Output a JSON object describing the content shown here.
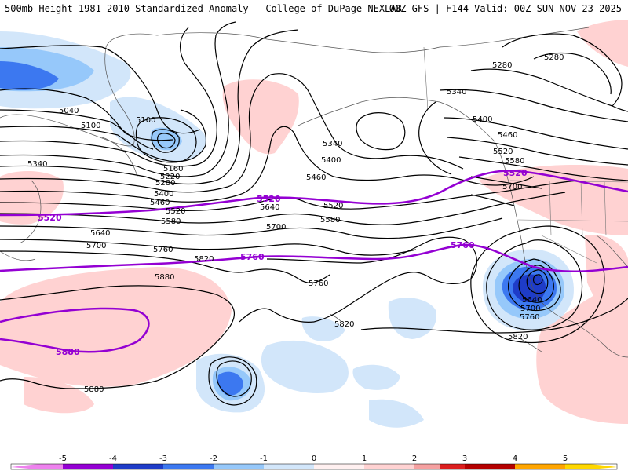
{
  "header": {
    "title": "500mb Height 1981-2010 Standardized Anomaly | College of DuPage NEXLAB",
    "run_info": "00Z GFS | F144 Valid: 00Z SUN NOV 23 2025"
  },
  "contour_labels": {
    "c5040": "5040",
    "c5100a": "5100",
    "c5100b": "5100",
    "c5160": "5160",
    "c5220": "5220",
    "c5280a": "5280",
    "c5280b": "5280",
    "c5280c": "5280",
    "c5340a": "5340",
    "c5340b": "5340",
    "c5340c": "5340",
    "c5400a": "5400",
    "c5400b": "5400",
    "c5400c": "5400",
    "c5460a": "5460",
    "c5460b": "5460",
    "c5460c": "5460",
    "c5520a": "5520",
    "c5520b": "5520",
    "c5520c": "5520",
    "c5580a": "5580",
    "c5580b": "5580",
    "c5580c": "5580",
    "c5640a": "5640",
    "c5640b": "5640",
    "c5640c": "5640",
    "c5700a": "5700",
    "c5700b": "5700",
    "c5700c": "5700",
    "c5700d": "5700",
    "c5760a": "5760",
    "c5760b": "5760",
    "c5760c": "5760",
    "c5820a": "5820",
    "c5820b": "5820",
    "c5820c": "5820",
    "c5880a": "5880",
    "c5880b": "5880"
  },
  "highlight_labels": {
    "h5520a": "5520",
    "h5520b": "5520",
    "h5520c": "5520",
    "h5760a": "5760",
    "h5760b": "5760",
    "h5880": "5880"
  },
  "colorbar": {
    "ticks": [
      "-5",
      "-4",
      "-3",
      "-2",
      "-1",
      "0",
      "1",
      "2",
      "3",
      "4",
      "5"
    ],
    "colors": {
      "neg5": "#ee82ee",
      "neg4": "#9400d3",
      "neg3": "#1e3cc8",
      "neg2": "#3c78f0",
      "neg1": "#96c8fa",
      "neg05": "#d2e6fa",
      "pos05": "#fff0f0",
      "pos1": "#ffd2d2",
      "pos2": "#f5a0a0",
      "pos3": "#dc1e1e",
      "pos4": "#b40000",
      "pos5": "#ffa500",
      "pos6": "#ffd700"
    }
  }
}
